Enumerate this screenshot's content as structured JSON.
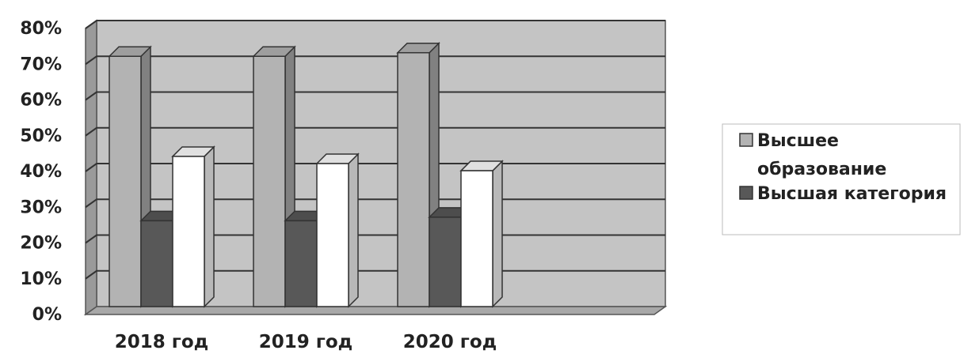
{
  "chart_data": {
    "type": "bar",
    "categories": [
      "2018 год",
      "2019 год",
      "2020 год"
    ],
    "series": [
      {
        "name": "Высшее образование",
        "values": [
          70,
          70,
          71
        ],
        "color": "#b3b3b3"
      },
      {
        "name": "Высшая категория",
        "values": [
          24,
          24,
          25
        ],
        "color": "#585858"
      },
      {
        "values": [
          42,
          40,
          38
        ],
        "color": "#ffffff"
      }
    ],
    "ylim": [
      0,
      80
    ],
    "yticks": [
      "0%",
      "10%",
      "20%",
      "30%",
      "40%",
      "50%",
      "60%",
      "70%",
      "80%"
    ],
    "grid": true,
    "three_d": true,
    "legend": {
      "position": "right",
      "entries": [
        {
          "line1": "Высшее",
          "line2": "образование"
        },
        {
          "line1": "Высшая категория"
        }
      ]
    },
    "colors": {
      "wall": "#c4c4c4",
      "gridline": "#333333",
      "floor": "#a8a8a8"
    }
  }
}
